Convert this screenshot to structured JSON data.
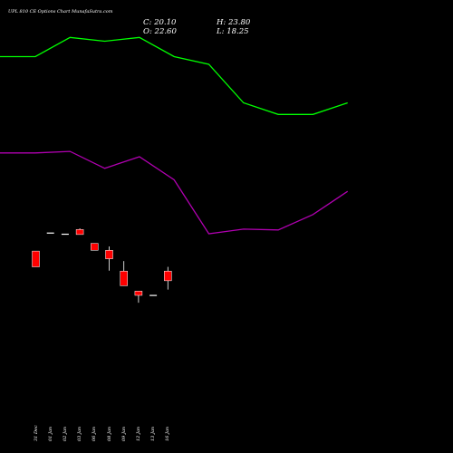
{
  "header": {
    "title": "UPL 810 CE Options  Chart MunafaSutra.com",
    "close": "C: 20.10",
    "open": "O: 22.60",
    "high": "H: 23.80",
    "low": "L: 18.25"
  },
  "chart_data": {
    "type": "candlestick",
    "categories": [
      "31 Dec",
      "01 Jan",
      "02 Jan",
      "03 Jan",
      "06 Jan",
      "08 Jan",
      "09 Jan",
      "12 Jan",
      "13 Jan",
      "16 Jan"
    ],
    "ohlc": [
      {
        "open": 39.5,
        "high": 39.5,
        "low": 35.4,
        "close": 35.4
      },
      {
        "open": 44.2,
        "high": 44.2,
        "low": 44.2,
        "close": 44.2
      },
      {
        "open": 43.9,
        "high": 43.9,
        "low": 43.9,
        "close": 43.9
      },
      {
        "open": 45.1,
        "high": 45.4,
        "low": 43.8,
        "close": 43.8
      },
      {
        "open": 41.5,
        "high": 41.5,
        "low": 39.7,
        "close": 39.7
      },
      {
        "open": 39.7,
        "high": 40.7,
        "low": 34.4,
        "close": 37.5
      },
      {
        "open": 34.3,
        "high": 36.9,
        "low": 30.5,
        "close": 30.5
      },
      {
        "open": 29.1,
        "high": 29.1,
        "low": 26.1,
        "close": 28.0
      },
      {
        "open": 28.0,
        "high": 28.0,
        "low": 28.0,
        "close": 28.0
      },
      {
        "open": 34.3,
        "high": 35.4,
        "low": 29.5,
        "close": 31.8
      }
    ],
    "candle_colors": {
      "up": "#00ff00",
      "down": "#ff0000",
      "doji": "#ffffff",
      "outline": "#ffffff"
    },
    "overlay_lines": [
      {
        "color": "#00ff00",
        "values": [
          90,
          90,
          95,
          94,
          95,
          90,
          88,
          78,
          75,
          75,
          78
        ]
      },
      {
        "color": "#b000b0",
        "values": [
          65,
          65,
          65.4,
          61,
          64,
          58,
          44,
          45.2,
          45,
          49,
          55
        ]
      }
    ],
    "overlay_x_index": [
      -1,
      0,
      1,
      2,
      3,
      4,
      5,
      6,
      7,
      8,
      9
    ],
    "ylim": [
      0,
      100
    ],
    "background": "#000000",
    "grid": false,
    "legend": "none"
  }
}
